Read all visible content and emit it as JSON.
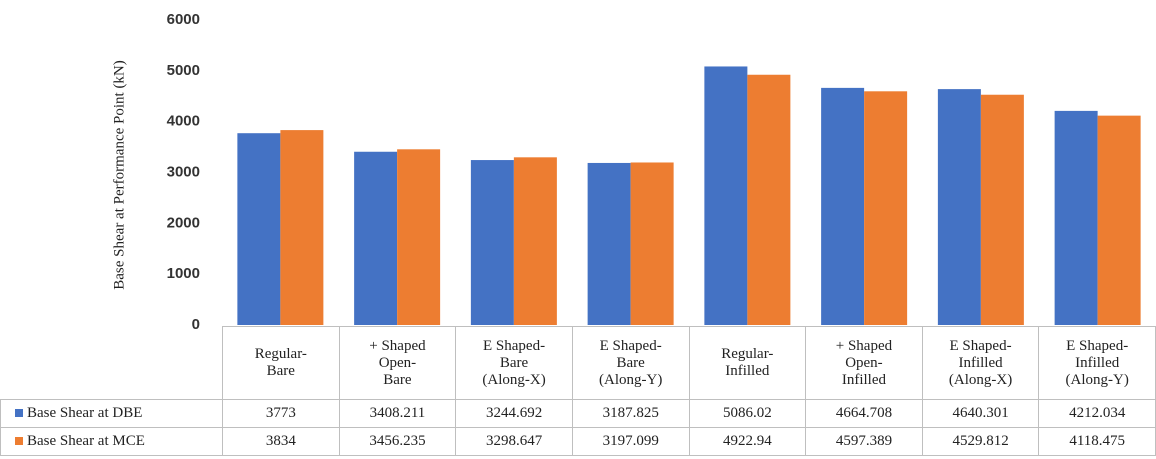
{
  "chart_data": {
    "type": "bar",
    "ylabel": "Base Shear at Performance Point (kN)",
    "categories": [
      "Regular-\nBare",
      "+ Shaped\nOpen-\nBare",
      "E Shaped-\nBare\n(Along-X)",
      "E Shaped-\nBare\n(Along-Y)",
      "Regular-\nInfilled",
      "+ Shaped\nOpen-\nInfilled",
      "E Shaped-\nInfilled\n(Along-X)",
      "E Shaped-\nInfilled\n(Along-Y)"
    ],
    "series": [
      {
        "name": "Base Shear at DBE",
        "color": "#4472c4",
        "values": [
          3773,
          3408.211,
          3244.692,
          3187.825,
          5086.02,
          4664.708,
          4640.301,
          4212.034
        ]
      },
      {
        "name": "Base Shear at MCE",
        "color": "#ed7d31",
        "values": [
          3834,
          3456.235,
          3298.647,
          3197.099,
          4922.94,
          4597.389,
          4529.812,
          4118.475
        ]
      }
    ],
    "ylim": [
      0,
      6000
    ],
    "yticks": [
      0,
      1000,
      2000,
      3000,
      4000,
      5000,
      6000
    ],
    "grid": false
  }
}
